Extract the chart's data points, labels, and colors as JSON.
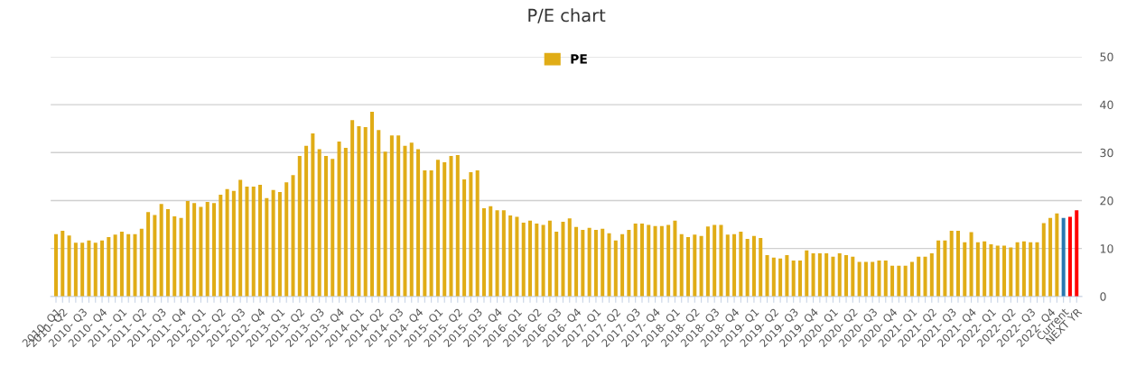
{
  "chart_data": {
    "type": "bar",
    "title": "P/E chart",
    "categories": [
      "2010- Q1",
      "2010- Q2",
      null,
      null,
      "2010- Q3",
      null,
      null,
      "2010- Q4",
      null,
      null,
      "2011- Q1",
      null,
      null,
      "2011- Q2",
      null,
      null,
      "2011- Q3",
      null,
      null,
      "2011- Q4",
      null,
      null,
      "2012- Q1",
      null,
      null,
      "2012- Q2",
      null,
      null,
      "2012- Q3",
      null,
      null,
      "2012- Q4",
      null,
      null,
      "2013- Q1",
      null,
      null,
      "2013- Q2",
      null,
      null,
      "2013- Q3",
      null,
      null,
      "2013- Q4",
      null,
      null,
      "2014- Q1",
      null,
      null,
      "2014- Q2",
      null,
      null,
      "2014- Q3",
      null,
      null,
      "2014- Q4",
      null,
      null,
      "2015- Q1",
      null,
      null,
      "2015- Q2",
      null,
      null,
      "2015- Q3",
      null,
      null,
      "2015- Q4",
      null,
      null,
      "2016- Q1",
      null,
      null,
      "2016- Q2",
      null,
      null,
      "2016- Q3",
      null,
      null,
      "2016- Q4",
      null,
      null,
      "2017- Q1",
      null,
      null,
      "2017- Q2",
      null,
      null,
      "2017- Q3",
      null,
      null,
      "2017- Q4",
      null,
      null,
      "2018- Q1",
      null,
      null,
      "2018- Q2",
      null,
      null,
      "2018- Q3",
      null,
      null,
      "2018- Q4",
      null,
      null,
      "2019- Q1",
      null,
      null,
      "2019- Q2",
      null,
      null,
      "2019- Q3",
      null,
      null,
      "2019- Q4",
      null,
      null,
      "2020- Q1",
      null,
      null,
      "2020- Q2",
      null,
      null,
      "2020- Q3",
      null,
      null,
      "2020- Q4",
      null,
      null,
      "2021- Q1",
      null,
      null,
      "2021- Q2",
      null,
      null,
      "2021- Q3",
      null,
      null,
      "2021- Q4",
      null,
      null,
      "2022- Q1",
      null,
      null,
      "2022- Q2",
      null,
      null,
      "2022- Q3",
      null,
      null,
      "2022- Q4",
      null,
      "Current",
      null,
      "NEXT YR"
    ],
    "series": [
      {
        "name": "PE",
        "color": "#e0ac16",
        "colors": [
          "#e0ac16",
          "#e0ac16",
          "#e0ac16",
          "#e0ac16",
          "#e0ac16",
          "#e0ac16",
          "#e0ac16",
          "#e0ac16",
          "#e0ac16",
          "#e0ac16",
          "#e0ac16",
          "#e0ac16",
          "#e0ac16",
          "#e0ac16",
          "#e0ac16",
          "#e0ac16",
          "#e0ac16",
          "#e0ac16",
          "#e0ac16",
          "#e0ac16",
          "#e0ac16",
          "#e0ac16",
          "#e0ac16",
          "#e0ac16",
          "#e0ac16",
          "#e0ac16",
          "#e0ac16",
          "#e0ac16",
          "#e0ac16",
          "#e0ac16",
          "#e0ac16",
          "#e0ac16",
          "#e0ac16",
          "#e0ac16",
          "#e0ac16",
          "#e0ac16",
          "#e0ac16",
          "#e0ac16",
          "#e0ac16",
          "#e0ac16",
          "#e0ac16",
          "#e0ac16",
          "#e0ac16",
          "#e0ac16",
          "#e0ac16",
          "#e0ac16",
          "#e0ac16",
          "#e0ac16",
          "#e0ac16",
          "#e0ac16",
          "#e0ac16",
          "#e0ac16",
          "#e0ac16",
          "#e0ac16",
          "#e0ac16",
          "#e0ac16",
          "#e0ac16",
          "#e0ac16",
          "#e0ac16",
          "#e0ac16",
          "#e0ac16",
          "#e0ac16",
          "#e0ac16",
          "#e0ac16",
          "#e0ac16",
          "#e0ac16",
          "#e0ac16",
          "#e0ac16",
          "#e0ac16",
          "#e0ac16",
          "#e0ac16",
          "#e0ac16",
          "#e0ac16",
          "#e0ac16",
          "#e0ac16",
          "#e0ac16",
          "#e0ac16",
          "#e0ac16",
          "#e0ac16",
          "#e0ac16",
          "#e0ac16",
          "#e0ac16",
          "#e0ac16",
          "#e0ac16",
          "#e0ac16",
          "#e0ac16",
          "#e0ac16",
          "#e0ac16",
          "#e0ac16",
          "#e0ac16",
          "#e0ac16",
          "#e0ac16",
          "#e0ac16",
          "#e0ac16",
          "#e0ac16",
          "#e0ac16",
          "#e0ac16",
          "#e0ac16",
          "#e0ac16",
          "#e0ac16",
          "#e0ac16",
          "#e0ac16",
          "#e0ac16",
          "#e0ac16",
          "#e0ac16",
          "#e0ac16",
          "#e0ac16",
          "#e0ac16",
          "#e0ac16",
          "#e0ac16",
          "#e0ac16",
          "#e0ac16",
          "#e0ac16",
          "#e0ac16",
          "#e0ac16",
          "#e0ac16",
          "#e0ac16",
          "#e0ac16",
          "#e0ac16",
          "#e0ac16",
          "#e0ac16",
          "#e0ac16",
          "#e0ac16",
          "#e0ac16",
          "#e0ac16",
          "#e0ac16",
          "#e0ac16",
          "#e0ac16",
          "#e0ac16",
          "#e0ac16",
          "#e0ac16",
          "#e0ac16",
          "#e0ac16",
          "#e0ac16",
          "#e0ac16",
          "#e0ac16",
          "#e0ac16",
          "#e0ac16",
          "#e0ac16",
          "#e0ac16",
          "#e0ac16",
          "#e0ac16",
          "#e0ac16",
          "#e0ac16",
          "#e0ac16",
          "#e0ac16",
          "#e0ac16",
          "#e0ac16",
          "#e0ac16",
          "#e0ac16",
          "#e0ac16",
          "#e0ac16",
          "#e0ac16",
          "#2a78b0",
          "#ff0000",
          "#ff0000"
        ],
        "values": [
          13.0,
          13.7,
          12.7,
          11.2,
          11.2,
          11.7,
          11.2,
          11.7,
          12.4,
          12.9,
          13.5,
          13.0,
          13.0,
          14.1,
          17.6,
          17.0,
          19.3,
          18.2,
          16.7,
          16.4,
          19.9,
          19.5,
          18.7,
          19.7,
          19.5,
          21.2,
          22.4,
          22.0,
          24.3,
          22.9,
          22.9,
          23.3,
          20.5,
          22.2,
          21.8,
          23.8,
          25.3,
          29.3,
          31.4,
          34.0,
          30.7,
          29.3,
          28.7,
          32.3,
          31.0,
          36.8,
          35.5,
          35.3,
          38.5,
          34.7,
          30.2,
          33.6,
          33.6,
          31.4,
          32.1,
          30.7,
          26.3,
          26.3,
          28.5,
          28.0,
          29.3,
          29.5,
          24.4,
          25.9,
          26.3,
          18.4,
          18.8,
          18.0,
          18.0,
          16.9,
          16.6,
          15.4,
          15.8,
          15.2,
          14.9,
          15.8,
          13.5,
          15.6,
          16.3,
          14.5,
          13.9,
          14.3,
          13.9,
          14.1,
          13.2,
          11.7,
          13.0,
          13.9,
          15.2,
          15.2,
          14.9,
          14.7,
          14.7,
          14.9,
          15.8,
          13.0,
          12.4,
          12.9,
          12.6,
          14.6,
          14.9,
          14.9,
          12.9,
          13.0,
          13.5,
          12.0,
          12.6,
          12.2,
          8.6,
          8.1,
          7.9,
          8.6,
          7.5,
          7.5,
          9.6,
          9.0,
          9.0,
          9.0,
          8.3,
          9.0,
          8.6,
          8.3,
          7.2,
          7.2,
          7.2,
          7.5,
          7.5,
          6.4,
          6.4,
          6.4,
          7.2,
          8.3,
          8.3,
          9.0,
          11.7,
          11.7,
          13.7,
          13.7,
          11.3,
          13.4,
          11.3,
          11.5,
          10.9,
          10.6,
          10.6,
          10.2,
          11.3,
          11.5,
          11.3,
          11.3,
          15.3,
          16.4,
          17.3,
          16.4,
          16.6,
          18.0
        ]
      }
    ],
    "ylim": [
      0,
      50
    ],
    "yticks": [
      0,
      10,
      20,
      30,
      40,
      50
    ],
    "grid": "y",
    "legend": "top"
  }
}
